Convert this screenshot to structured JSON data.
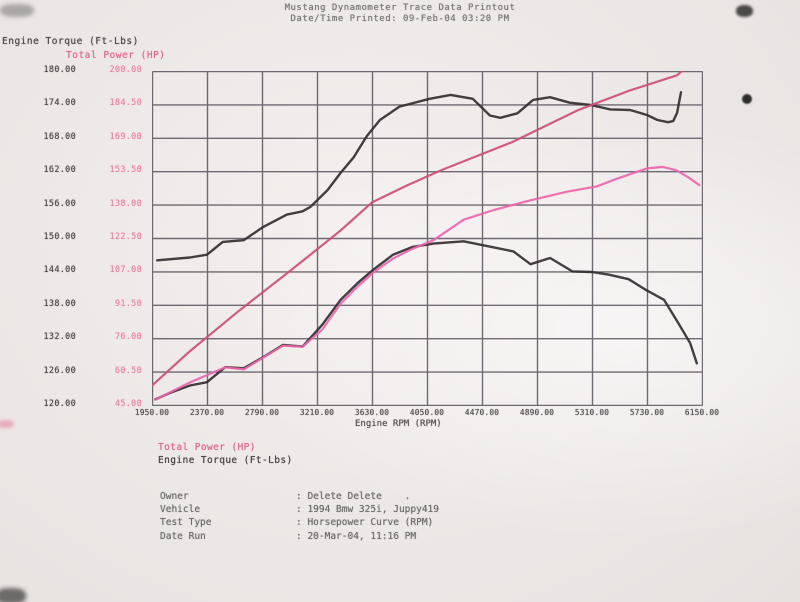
{
  "header": {
    "title": "Mustang Dynamometer Trace Data Printout",
    "printed": "Date/Time Printed: 09-Feb-04 03:20 PM"
  },
  "chart_data": {
    "type": "line",
    "title": "Mustang Dynamometer Trace Data Printout",
    "x_axis": {
      "label": "Engine RPM (RPM)",
      "range": [
        1950,
        6150
      ],
      "ticks": [
        "1950.00",
        "2370.00",
        "2790.00",
        "3210.00",
        "3630.00",
        "4050.00",
        "4470.00",
        "4890.00",
        "5310.00",
        "5730.00",
        "6150.00"
      ]
    },
    "y_axis_torque": {
      "label": "Engine Torque (Ft-Lbs)",
      "range": [
        120,
        180
      ],
      "color": "#4e4a4c",
      "ticks": [
        "180.00",
        "174.00",
        "168.00",
        "162.00",
        "156.00",
        "150.00",
        "144.00",
        "138.00",
        "132.00",
        "126.00",
        "120.00"
      ]
    },
    "y_axis_power": {
      "label": "Total Power (HP)",
      "range": [
        45,
        200
      ],
      "color": "#ee85a6",
      "ticks": [
        "200.00",
        "184.50",
        "169.00",
        "153.50",
        "138.00",
        "122.50",
        "107.00",
        "91.50",
        "76.00",
        "60.50",
        "45.00"
      ]
    },
    "grid": {
      "on": true,
      "color": "#57525a"
    },
    "legend_position": "below",
    "legend": [
      {
        "label": "Total Power (HP)",
        "color": "#e0688f"
      },
      {
        "label": "Engine Torque (Ft-Lbs)",
        "color": "#4a4648"
      }
    ],
    "series": [
      {
        "name": "engine-torque-run1",
        "axis": "torque",
        "color": "#332f31",
        "width": 2.4,
        "points": [
          [
            1990,
            146
          ],
          [
            2240,
            146.5
          ],
          [
            2370,
            147
          ],
          [
            2490,
            149.3
          ],
          [
            2650,
            149.6
          ],
          [
            2800,
            152
          ],
          [
            2980,
            154.2
          ],
          [
            3100,
            154.8
          ],
          [
            3160,
            155.6
          ],
          [
            3290,
            158.6
          ],
          [
            3390,
            161.7
          ],
          [
            3490,
            164.5
          ],
          [
            3590,
            168.3
          ],
          [
            3690,
            171.2
          ],
          [
            3840,
            173.6
          ],
          [
            4070,
            175
          ],
          [
            4230,
            175.7
          ],
          [
            4400,
            175
          ],
          [
            4530,
            172
          ],
          [
            4610,
            171.6
          ],
          [
            4740,
            172.4
          ],
          [
            4860,
            174.8
          ],
          [
            4990,
            175.3
          ],
          [
            5140,
            174.3
          ],
          [
            5300,
            173.9
          ],
          [
            5450,
            173.1
          ],
          [
            5600,
            173
          ],
          [
            5730,
            172.1
          ],
          [
            5810,
            171.2
          ],
          [
            5890,
            170.8
          ],
          [
            5930,
            171
          ],
          [
            5960,
            172.5
          ],
          [
            5990,
            176.2
          ]
        ]
      },
      {
        "name": "engine-torque-run2",
        "axis": "torque",
        "color": "#332f31",
        "width": 2.4,
        "points": [
          [
            1975,
            121
          ],
          [
            2100,
            122.3
          ],
          [
            2240,
            123.5
          ],
          [
            2370,
            124.1
          ],
          [
            2510,
            126.8
          ],
          [
            2650,
            126.6
          ],
          [
            2800,
            128.6
          ],
          [
            2950,
            130.8
          ],
          [
            3100,
            130.5
          ],
          [
            3250,
            134.4
          ],
          [
            3390,
            138.9
          ],
          [
            3520,
            141.9
          ],
          [
            3640,
            144.3
          ],
          [
            3790,
            147
          ],
          [
            3940,
            148.4
          ],
          [
            4100,
            149
          ],
          [
            4330,
            149.4
          ],
          [
            4500,
            148.6
          ],
          [
            4710,
            147.6
          ],
          [
            4840,
            145.3
          ],
          [
            4990,
            146.4
          ],
          [
            5160,
            144
          ],
          [
            5310,
            143.9
          ],
          [
            5440,
            143.4
          ],
          [
            5590,
            142.6
          ],
          [
            5720,
            140.7
          ],
          [
            5860,
            138.9
          ],
          [
            5970,
            134.7
          ],
          [
            6060,
            131.1
          ],
          [
            6110,
            127.5
          ]
        ]
      },
      {
        "name": "total-power-run1",
        "axis": "power",
        "color": "#cf4d78",
        "width": 2.2,
        "points": [
          [
            1950,
            54
          ],
          [
            2240,
            70
          ],
          [
            2620,
            89
          ],
          [
            3000,
            107
          ],
          [
            3390,
            126
          ],
          [
            3630,
            139
          ],
          [
            3900,
            147
          ],
          [
            4160,
            154
          ],
          [
            4700,
            167
          ],
          [
            5210,
            182
          ],
          [
            5600,
            191
          ],
          [
            5960,
            198
          ],
          [
            6010,
            200.8
          ]
        ]
      },
      {
        "name": "total-power-run2",
        "axis": "power",
        "color": "#ee64ad",
        "width": 2.2,
        "points": [
          [
            1975,
            47.5
          ],
          [
            2240,
            55.5
          ],
          [
            2510,
            62.5
          ],
          [
            2650,
            61.5
          ],
          [
            2800,
            67
          ],
          [
            2950,
            72.5
          ],
          [
            3100,
            72
          ],
          [
            3250,
            80
          ],
          [
            3390,
            92
          ],
          [
            3520,
            100
          ],
          [
            3640,
            106.5
          ],
          [
            3790,
            113
          ],
          [
            3940,
            117.5
          ],
          [
            4100,
            121.5
          ],
          [
            4330,
            131
          ],
          [
            4560,
            135.5
          ],
          [
            4840,
            140
          ],
          [
            5120,
            144
          ],
          [
            5350,
            146.5
          ],
          [
            5500,
            150
          ],
          [
            5730,
            154.8
          ],
          [
            5850,
            155.5
          ],
          [
            5950,
            154
          ],
          [
            6050,
            150.5
          ],
          [
            6130,
            147
          ]
        ]
      }
    ]
  },
  "info": {
    "rows": [
      {
        "label": "Owner",
        "value": ": Delete Delete    ."
      },
      {
        "label": "Vehicle",
        "value": ": 1994 Bmw 325i, Juppy419"
      },
      {
        "label": "Test Type",
        "value": ": Horsepower Curve (RPM)"
      },
      {
        "label": "Date Run",
        "value": ": 20-Mar-04, 11:16 PM"
      }
    ]
  }
}
